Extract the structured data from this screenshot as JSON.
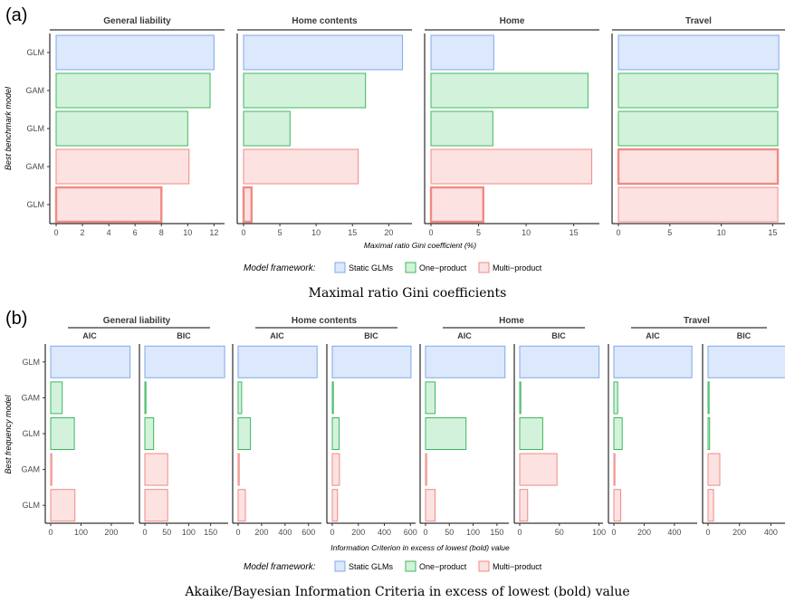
{
  "colors": {
    "static_fill": "#dce8fb",
    "static_stroke": "#7fa8ea",
    "one_fill": "#d3f2dc",
    "one_stroke": "#3cb85c",
    "multi_fill": "#fde2e2",
    "multi_stroke": "#f08a84",
    "axis": "#000000",
    "tick_text": "#4d4d4d"
  },
  "panel_a": {
    "tag": "(a)",
    "caption": "Maximal ratio Gini coefficients",
    "ylabel": "Best benchmark model",
    "xlabel": "Maximal ratio Gini coefficient (%)",
    "rows": [
      {
        "label": "GLM",
        "framework": "static"
      },
      {
        "label": "GAM",
        "framework": "one"
      },
      {
        "label": "GLM",
        "framework": "one"
      },
      {
        "label": "GAM",
        "framework": "multi"
      },
      {
        "label": "GLM",
        "framework": "multi"
      }
    ],
    "legend": {
      "title": "Model framework:",
      "items": [
        {
          "key": "static",
          "label": "Static GLMs"
        },
        {
          "key": "one",
          "label": "One−product"
        },
        {
          "key": "multi",
          "label": "Multi−product"
        }
      ]
    }
  },
  "panel_b": {
    "tag": "(b)",
    "caption": "Akaike/Bayesian Information Criteria in excess of lowest (bold) value",
    "ylabel": "Best frequency model",
    "xlabel": "Information Criterion in excess of lowest (bold) value",
    "rows": [
      {
        "label": "GLM",
        "framework": "static"
      },
      {
        "label": "GAM",
        "framework": "one"
      },
      {
        "label": "GLM",
        "framework": "one"
      },
      {
        "label": "GAM",
        "framework": "multi"
      },
      {
        "label": "GLM",
        "framework": "multi"
      }
    ],
    "legend": {
      "title": "Model framework:",
      "items": [
        {
          "key": "static",
          "label": "Static GLMs"
        },
        {
          "key": "one",
          "label": "One−product"
        },
        {
          "key": "multi",
          "label": "Multi−product"
        }
      ]
    }
  },
  "chart_data": [
    {
      "type": "bar",
      "orientation": "horizontal",
      "title": "",
      "xlabel": "Maximal ratio Gini coefficient (%)",
      "ylabel": "Best benchmark model",
      "categories": [
        "GLM",
        "GAM",
        "GLM",
        "GAM",
        "GLM"
      ],
      "frameworks": [
        "Static GLMs",
        "One−product",
        "One−product",
        "Multi−product",
        "Multi−product"
      ],
      "facets": [
        {
          "name": "General liability",
          "xlim": [
            0,
            12.8
          ],
          "ticks": [
            0,
            2,
            4,
            6,
            8,
            10,
            12
          ],
          "values": [
            12.0,
            11.7,
            10.0,
            10.1,
            8.0
          ],
          "bold": [
            false,
            false,
            false,
            false,
            true
          ]
        },
        {
          "name": "Home contents",
          "xlim": [
            0,
            23.2
          ],
          "ticks": [
            0,
            5,
            10,
            15,
            20
          ],
          "values": [
            21.9,
            16.8,
            6.4,
            15.8,
            1.1
          ],
          "bold": [
            false,
            false,
            false,
            false,
            true
          ]
        },
        {
          "name": "Home",
          "xlim": [
            0,
            17.7
          ],
          "ticks": [
            0,
            5,
            10,
            15
          ],
          "values": [
            6.6,
            16.5,
            6.5,
            16.9,
            5.5
          ],
          "bold": [
            false,
            false,
            false,
            false,
            true
          ]
        },
        {
          "name": "Travel",
          "xlim": [
            0,
            16.2
          ],
          "ticks": [
            0,
            5,
            10,
            15
          ],
          "values": [
            15.6,
            15.5,
            15.5,
            15.5,
            15.5
          ],
          "bold": [
            false,
            false,
            false,
            true,
            false
          ]
        }
      ],
      "legend": {
        "title": "Model framework:",
        "position": "bottom",
        "entries": [
          "Static GLMs",
          "One−product",
          "Multi−product"
        ]
      },
      "grid": false
    },
    {
      "type": "bar",
      "orientation": "horizontal",
      "title": "",
      "xlabel": "Information Criterion in excess of lowest (bold) value",
      "ylabel": "Best frequency model",
      "categories": [
        "GLM",
        "GAM",
        "GLM",
        "GAM",
        "GLM"
      ],
      "frameworks": [
        "Static GLMs",
        "One−product",
        "One−product",
        "Multi−product",
        "Multi−product"
      ],
      "groups": [
        {
          "name": "General liability",
          "facets": [
            {
              "name": "AIC",
              "xlim": [
                0,
                275
              ],
              "ticks": [
                0,
                100,
                200
              ],
              "values": [
                262,
                38,
                78,
                3,
                80
              ]
            },
            {
              "name": "BIC",
              "xlim": [
                0,
                190
              ],
              "ticks": [
                0,
                50,
                100,
                150
              ],
              "values": [
                182,
                2,
                20,
                52,
                52
              ]
            }
          ]
        },
        {
          "name": "Home contents",
          "facets": [
            {
              "name": "AIC",
              "xlim": [
                0,
                710
              ],
              "ticks": [
                0,
                200,
                400,
                600
              ],
              "values": [
                673,
                30,
                105,
                3,
                62
              ]
            },
            {
              "name": "BIC",
              "xlim": [
                0,
                640
              ],
              "ticks": [
                0,
                200,
                400,
                600
              ],
              "values": [
                605,
                3,
                52,
                55,
                40
              ]
            }
          ]
        },
        {
          "name": "Home",
          "facets": [
            {
              "name": "AIC",
              "xlim": [
                0,
                175
              ],
              "ticks": [
                0,
                50,
                100,
                150
              ],
              "values": [
                167,
                20,
                85,
                1,
                20
              ]
            },
            {
              "name": "BIC",
              "xlim": [
                0,
                105
              ],
              "ticks": [
                0,
                50,
                100
              ],
              "values": [
                100,
                1,
                29,
                47,
                10
              ]
            }
          ]
        },
        {
          "name": "Travel",
          "facets": [
            {
              "name": "AIC",
              "xlim": [
                0,
                550
              ],
              "ticks": [
                0,
                200,
                400
              ],
              "values": [
                515,
                25,
                55,
                5,
                45
              ]
            },
            {
              "name": "BIC",
              "xlim": [
                0,
                490
              ],
              "ticks": [
                0,
                200,
                400
              ],
              "values": [
                495,
                5,
                10,
                75,
                35
              ]
            }
          ]
        }
      ],
      "legend": {
        "title": "Model framework:",
        "position": "bottom",
        "entries": [
          "Static GLMs",
          "One−product",
          "Multi−product"
        ]
      },
      "grid": false
    }
  ]
}
